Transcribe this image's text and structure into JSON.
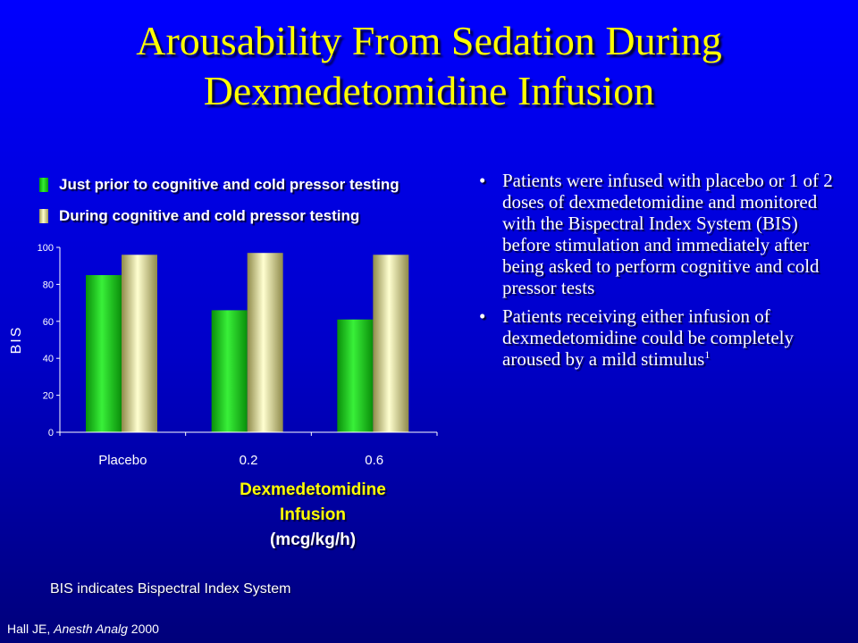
{
  "title": "Arousability From Sedation During Dexmedetomidine Infusion",
  "legend": [
    {
      "label": "Just prior to cognitive and cold pressor testing",
      "color": "#22cc22"
    },
    {
      "label": "During cognitive and cold pressor testing",
      "color": "#e8e4a0"
    }
  ],
  "chart_data": {
    "type": "bar",
    "categories": [
      "Placebo",
      "0.2",
      "0.6"
    ],
    "series": [
      {
        "name": "Just prior to cognitive and cold pressor testing",
        "values": [
          85,
          66,
          61
        ]
      },
      {
        "name": "During cognitive and cold pressor testing",
        "values": [
          96,
          97,
          96
        ]
      }
    ],
    "ylabel": "BIS",
    "xlabel_lines": [
      "Dexmedetomidine",
      "Infusion",
      "(mcg/kg/h)"
    ],
    "ylim": [
      0,
      100
    ],
    "yticks": [
      "0",
      "20",
      "40",
      "60",
      "80",
      "100"
    ],
    "grid": false,
    "legend_position": "top"
  },
  "bullets": [
    {
      "text": "Patients were infused with placebo or 1 of 2 doses of dexmedetomidine and monitored with the Bispectral Index System (BIS) before stimulation and immediately after being asked to perform cognitive and cold pressor tests",
      "sup": ""
    },
    {
      "text": "Patients receiving either infusion of dexmedetomidine could be completely aroused by a mild stimulus",
      "sup": "1"
    }
  ],
  "bullet_symbol": "•",
  "footnote": "BIS indicates Bispectral Index System",
  "citation": {
    "author": "Hall JE, ",
    "journal": "Anesth Analg",
    "year": " 2000"
  },
  "colors": {
    "background": "#0000e0",
    "title": "#ffff00",
    "bar_green": "#22cc22",
    "bar_cream": "#e8e4a0"
  }
}
